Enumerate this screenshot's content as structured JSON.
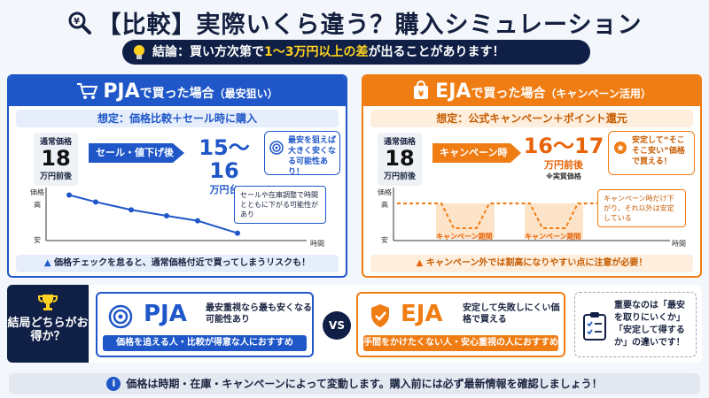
{
  "title": "【比較】実際いくら違う？購入シミュレーション",
  "conclusion": {
    "prefix": "結論：買い方次第で",
    "highlight": "1〜3万円以上の差",
    "suffix": "が出ることがあります！"
  },
  "pja": {
    "name": "PJA",
    "header_text": "で買った場合",
    "header_sub": "（最安狙い）",
    "assume": "想定：価格比較＋セール時に購入",
    "normal_label": "通常価格",
    "normal_value": "18",
    "normal_unit": "万円前後",
    "step": "セール・値下げ後",
    "price": "15〜16",
    "price_unit": "万円台",
    "note": "最安を狙えば大きく安くなる可能性あり！",
    "axis_price": "価格",
    "axis_high": "高",
    "axis_low": "安",
    "axis_time": "時間",
    "callout": "セールや在庫調整で時間とともに下がる可能性があり",
    "chart_values": [
      0.92,
      0.78,
      0.62,
      0.5,
      0.4,
      0.15
    ],
    "warning": "価格チェックを怠ると、通常価格付近で買ってしまうリスクも！"
  },
  "eja": {
    "name": "EJA",
    "header_text": "で買った場合",
    "header_sub": "（キャンペーン活用）",
    "assume": "想定：公式キャンペーン＋ポイント還元",
    "normal_label": "通常価格",
    "normal_value": "18",
    "normal_unit": "万円前後",
    "step": "キャンペーン時",
    "price": "16〜17",
    "price_unit": "万円前後",
    "price_note": "※実質価格",
    "note": "安定して“そこそこ安い”価格で買える！",
    "axis_price": "価格",
    "axis_high": "高",
    "axis_low": "安",
    "axis_time": "時間",
    "period1": "キャンペーン期間",
    "period2": "キャンペーン期間",
    "callout": "キャンペーン時だけ下がり、それ以外は安定している",
    "warning": "キャンペーン外では割高になりやすい点に注意が必要！"
  },
  "bottom": {
    "question": "結局どちらがお得か？",
    "pja_name": "PJA",
    "pja_desc": "最安重視なら最も安くなる可能性あり",
    "pja_bar": "価格を追える人・比較が得意な人におすすめ",
    "vs": "VS",
    "eja_name": "EJA",
    "eja_desc": "安定して失敗しにくい価格で買える",
    "eja_bar": "手間をかけたくない人・安心重視の人におすすめ",
    "key": "重要なのは「最安を取りにいくか」「安定して得するか」の違いです！"
  },
  "footer": "価格は時期・在庫・キャンペーンによって変動します。購入前には必ず最新情報を確認しましょう！",
  "colors": {
    "blue": "#1f57c8",
    "orange": "#f07d14",
    "navy": "#0f1f45",
    "yellow": "#ffd21f"
  }
}
